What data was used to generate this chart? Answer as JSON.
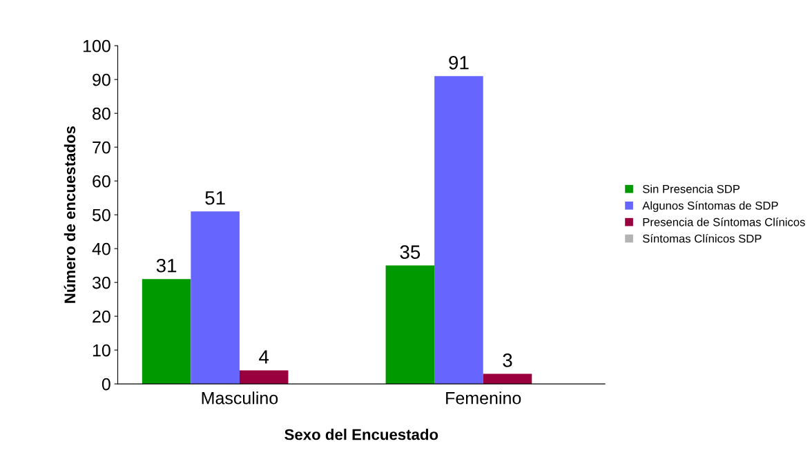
{
  "chart_data": {
    "type": "bar",
    "xlabel": "Sexo del Encuestado",
    "ylabel": "Número de encuestados",
    "categories": [
      "Masculino",
      "Femenino"
    ],
    "series": [
      {
        "name": "Sin Presencia SDP",
        "color": "#009900",
        "values": [
          31,
          35
        ],
        "value_labels": [
          "31",
          "35"
        ]
      },
      {
        "name": "Algunos Síntomas de SDP",
        "color": "#6666ff",
        "values": [
          51,
          91
        ],
        "value_labels": [
          "51",
          "91"
        ]
      },
      {
        "name": "Presencia de Síntomas Clínicos",
        "color": "#99003d",
        "values": [
          4,
          3
        ],
        "value_labels": [
          "4",
          "3"
        ]
      },
      {
        "name": "Síntomas Clínicos SDP",
        "color": "#b3b3b3",
        "values": [
          0,
          0
        ],
        "value_labels": [
          null,
          null
        ]
      }
    ],
    "ylim": [
      0,
      100
    ],
    "yticks": [
      0,
      10,
      20,
      30,
      40,
      50,
      60,
      70,
      80,
      90,
      100
    ],
    "grid": false,
    "legend": "right"
  }
}
